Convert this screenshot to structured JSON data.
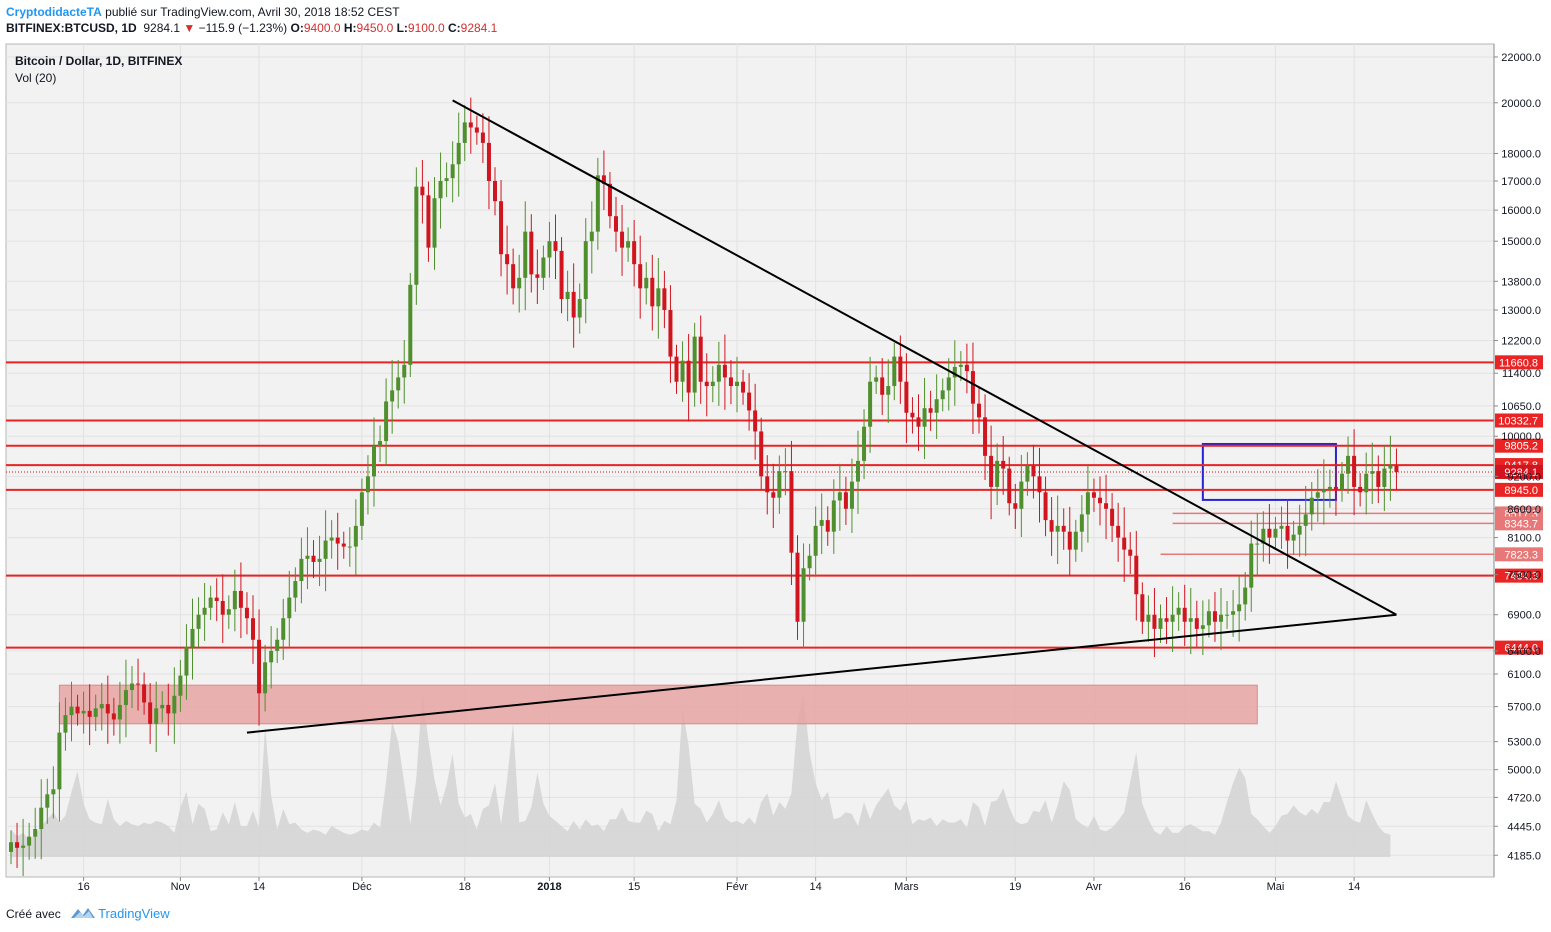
{
  "header": {
    "author": "CryptodidacteTA",
    "published_text": "publié sur TradingView.com, Avril 30, 2018 18:52 CEST",
    "symbol": "BITFINEX:BTCUSD, 1D",
    "last": "9284.1",
    "change": "−115.9 (−1.23%)",
    "o_label": "O:",
    "o_value": "9400.0",
    "h_label": "H:",
    "h_value": "9450.0",
    "l_label": "L:",
    "l_value": "9100.0",
    "c_label": "C:",
    "c_value": "9284.1"
  },
  "chart_data": {
    "type": "candlestick",
    "title": "Bitcoin / Dollar, 1D, BITFINEX",
    "indicator": "Vol (20)",
    "y_scale": "log",
    "ylim": [
      4000,
      22600
    ],
    "y_ticks": [
      "22000.0",
      "20000.0",
      "18000.0",
      "17000.0",
      "16000.0",
      "15000.0",
      "13800.0",
      "13000.0",
      "12200.0",
      "11400.0",
      "10650.0",
      "10000.0",
      "9200.0",
      "8600.0",
      "8100.0",
      "7500.0",
      "6900.0",
      "6400.0",
      "6100.0",
      "5700.0",
      "5300.0",
      "5000.0",
      "4720.0",
      "4445.0",
      "4185.0"
    ],
    "x_tick_labels": [
      "16",
      "Nov",
      "14",
      "Déc",
      "18",
      "2018",
      "15",
      "Févr",
      "14",
      "Mars",
      "19",
      "Avr",
      "16",
      "Mai",
      "14"
    ],
    "date_start": "2017-10-04",
    "closes": [
      4300,
      4250,
      4270,
      4350,
      4420,
      4620,
      4750,
      4800,
      5400,
      5600,
      5700,
      5620,
      5650,
      5580,
      5680,
      5730,
      5620,
      5550,
      5720,
      5900,
      5980,
      5970,
      5750,
      5500,
      5680,
      5720,
      5620,
      5830,
      6080,
      6450,
      6700,
      6900,
      7000,
      7150,
      7100,
      6900,
      6980,
      7250,
      7000,
      6850,
      6550,
      5860,
      6250,
      6400,
      6550,
      6850,
      7150,
      7400,
      7750,
      7800,
      7700,
      7750,
      8050,
      8100,
      8000,
      7950,
      7950,
      8300,
      8900,
      9200,
      9800,
      9900,
      10750,
      11000,
      11300,
      11600,
      13700,
      16800,
      16500,
      14800,
      16400,
      17000,
      17100,
      17600,
      18400,
      19200,
      19000,
      18800,
      18400,
      17000,
      16300,
      14600,
      14300,
      13600,
      13900,
      15300,
      14000,
      13900,
      14500,
      15000,
      14700,
      13300,
      13500,
      12800,
      13300,
      15000,
      15300,
      17200,
      16900,
      15800,
      15300,
      14800,
      15000,
      14300,
      13600,
      13900,
      13100,
      13600,
      13000,
      11800,
      11200,
      11700,
      10950,
      12300,
      11200,
      11100,
      11200,
      11600,
      11300,
      11100,
      11200,
      10950,
      10550,
      10100,
      9200,
      8900,
      8800,
      9300,
      9300,
      7850,
      6800,
      7600,
      7800,
      8300,
      8400,
      8200,
      8750,
      8900,
      8600,
      9100,
      9500,
      10200,
      11200,
      11300,
      10900,
      11100,
      11800,
      11200,
      10500,
      10400,
      10200,
      10600,
      10500,
      10800,
      11000,
      11300,
      11550,
      11600,
      11450,
      10700,
      10400,
      9600,
      9000,
      9500,
      9350,
      8700,
      8600,
      9100,
      9400,
      9200,
      8900,
      8400,
      8200,
      8300,
      8200,
      7900,
      8200,
      8500,
      8900,
      8800,
      8700,
      8600,
      8300,
      8100,
      7900,
      7800,
      7200,
      6800,
      6900,
      6700,
      6850,
      6800,
      6900,
      7000,
      6800,
      6850,
      6700,
      6750,
      6950,
      6800,
      6900,
      6900,
      6950,
      7050,
      7300,
      8000,
      8000,
      8250,
      8100,
      8250,
      8300,
      8050,
      8150,
      8300,
      8500,
      8800,
      8900,
      8950,
      9000,
      8950,
      9250,
      9600,
      9000,
      8900,
      9250,
      9300,
      9000,
      9350,
      9400,
      9284.1
    ],
    "volumes": [
      1.6,
      1.2,
      1.4,
      1.0,
      1.3,
      1.8,
      2.2,
      2.6,
      2.0,
      2.4,
      3.8,
      5.0,
      3.1,
      2.2,
      2.0,
      1.9,
      3.4,
      2.2,
      1.8,
      2.1,
      1.9,
      1.8,
      2.0,
      1.9,
      2.1,
      2.0,
      1.8,
      1.4,
      2.9,
      3.8,
      1.9,
      3.1,
      2.8,
      1.5,
      1.6,
      2.6,
      1.9,
      3.2,
      1.8,
      1.8,
      2.7,
      1.7,
      7.6,
      3.6,
      1.6,
      2.8,
      1.9,
      2.0,
      1.6,
      1.4,
      1.6,
      1.5,
      1.3,
      1.8,
      1.6,
      1.4,
      1.3,
      1.4,
      1.6,
      1.5,
      2.0,
      1.7,
      4.4,
      7.9,
      6.7,
      4.3,
      1.9,
      4.6,
      9.6,
      6.8,
      4.5,
      3.0,
      4.2,
      6.0,
      3.1,
      2.3,
      2.5,
      1.6,
      2.8,
      3.0,
      4.3,
      1.9,
      4.5,
      7.8,
      2.0,
      2.1,
      2.9,
      4.9,
      3.1,
      2.4,
      2.1,
      1.8,
      1.5,
      2.1,
      1.6,
      2.2,
      1.8,
      1.9,
      1.5,
      2.2,
      2.2,
      2.9,
      2.1,
      2.0,
      2.0,
      2.7,
      2.5,
      1.5,
      2.1,
      1.9,
      3.3,
      8.7,
      6.5,
      3.1,
      2.8,
      2.0,
      2.5,
      3.3,
      2.3,
      2.0,
      2.1,
      1.9,
      2.3,
      1.9,
      3.2,
      3.7,
      2.4,
      3.2,
      2.8,
      3.7,
      7.9,
      9.5,
      6.1,
      4.3,
      3.3,
      3.8,
      2.2,
      2.3,
      2.6,
      2.5,
      1.8,
      3.2,
      2.2,
      3.0,
      3.5,
      4.0,
      3.0,
      2.7,
      3.3,
      1.9,
      2.2,
      2.1,
      2.3,
      1.8,
      2.2,
      2.0,
      2.0,
      2.2,
      1.7,
      3.2,
      2.9,
      1.8,
      3.2,
      3.3,
      4.0,
      2.9,
      2.1,
      1.9,
      2.0,
      2.7,
      2.6,
      3.3,
      2.0,
      3.0,
      4.4,
      3.9,
      2.2,
      1.9,
      1.7,
      2.4,
      1.6,
      1.5,
      1.7,
      2.1,
      2.6,
      4.4,
      6.1,
      3.1,
      2.2,
      1.5,
      1.3,
      1.8,
      1.4,
      1.4,
      1.8,
      1.9,
      1.7,
      1.5,
      1.5,
      1.3,
      2.0,
      3.2,
      4.3,
      5.2,
      4.6,
      2.5,
      2.2,
      1.8,
      1.4,
      1.8,
      2.4,
      2.5,
      3.0,
      2.6,
      2.4,
      2.8,
      2.5,
      3.2,
      3.2,
      4.4,
      3.4,
      2.4,
      2.1,
      2.0,
      3.3,
      2.5,
      1.8,
      1.4,
      1.3
    ],
    "horizontal_levels": [
      {
        "label": "11660.8",
        "style": "thick"
      },
      {
        "label": "10332.7",
        "style": "thick"
      },
      {
        "label": "9805.2",
        "style": "thick"
      },
      {
        "label": "9417.8",
        "style": "thick"
      },
      {
        "label": "9284.1",
        "style": "dotted"
      },
      {
        "label": "8945.0",
        "style": "thick"
      },
      {
        "label": "8517.3",
        "style": "thin"
      },
      {
        "label": "8343.7",
        "style": "thin"
      },
      {
        "label": "7823.3",
        "style": "thin"
      },
      {
        "label": "7484.3",
        "style": "thick"
      },
      {
        "label": "6444.0",
        "style": "thick"
      }
    ],
    "trendlines": [
      {
        "name": "resistance",
        "from": [
          "2017-12-16",
          20100
        ],
        "to": [
          "2018-05-21",
          6900
        ]
      },
      {
        "name": "support",
        "from": [
          "2017-11-12",
          5400
        ],
        "to": [
          "2018-05-21",
          6900
        ]
      }
    ],
    "zones": [
      {
        "name": "demand-zone",
        "color": "#e8a4a4",
        "from": "2017-10-12",
        "to": "2018-04-28",
        "low": 5500,
        "high": 5960
      },
      {
        "name": "range-box",
        "color": "#2424d6",
        "from": "2018-04-19",
        "to": "2018-05-11",
        "low": 8760,
        "high": 9840
      }
    ],
    "colors": {
      "up": "#4f8f2e",
      "down": "#d0151f",
      "level": "#e82424",
      "background": "#f2f2f2"
    }
  },
  "footer": {
    "created_with": "Créé avec",
    "brand": "TradingView"
  }
}
